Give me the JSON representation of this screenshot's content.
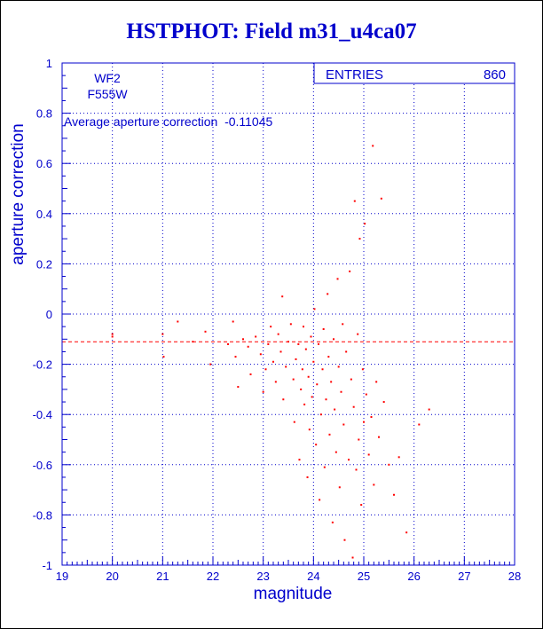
{
  "page_title": "HSTPHOT: Field m31_u4ca07",
  "chart_data": {
    "type": "scatter",
    "title": "HSTPHOT: Field m31_u4ca07",
    "xlabel": "magnitude",
    "ylabel": "aperture correction",
    "xlim": [
      19,
      28
    ],
    "ylim": [
      -1,
      1
    ],
    "x_ticks": [
      19,
      20,
      21,
      22,
      23,
      24,
      25,
      26,
      27,
      28
    ],
    "y_ticks": [
      -1,
      -0.8,
      -0.6,
      -0.4,
      -0.2,
      0,
      0.2,
      0.4,
      0.6,
      0.8,
      1
    ],
    "grid": true,
    "stats_box": {
      "label": "ENTRIES",
      "value": "860"
    },
    "annotations": [
      "WF2",
      "F555W",
      "Average aperture correction  -0.11045"
    ],
    "reference_line": {
      "y": -0.11045,
      "style": "dashed"
    },
    "entries": 860,
    "series": [
      {
        "values_note": "",
        "points": [
          [
            20.0,
            -0.09
          ],
          [
            20.0,
            -0.08
          ],
          [
            21.0,
            -0.08
          ],
          [
            21.02,
            -0.17
          ],
          [
            21.3,
            -0.03
          ],
          [
            21.6,
            -0.11
          ],
          [
            21.85,
            -0.07
          ],
          [
            21.95,
            -0.2
          ],
          [
            22.3,
            -0.12
          ],
          [
            22.4,
            -0.03
          ],
          [
            22.45,
            -0.17
          ],
          [
            22.5,
            -0.29
          ],
          [
            22.6,
            -0.1
          ],
          [
            22.7,
            -0.13
          ],
          [
            22.75,
            -0.24
          ],
          [
            22.85,
            -0.09
          ],
          [
            22.95,
            -0.16
          ],
          [
            23.0,
            -0.31
          ],
          [
            23.05,
            -0.22
          ],
          [
            23.1,
            -0.12
          ],
          [
            23.15,
            -0.05
          ],
          [
            23.2,
            -0.19
          ],
          [
            23.25,
            -0.27
          ],
          [
            23.3,
            -0.08
          ],
          [
            23.35,
            -0.15
          ],
          [
            23.38,
            0.07
          ],
          [
            23.4,
            -0.34
          ],
          [
            23.45,
            -0.21
          ],
          [
            23.5,
            -0.11
          ],
          [
            23.55,
            -0.04
          ],
          [
            23.6,
            -0.26
          ],
          [
            23.62,
            -0.43
          ],
          [
            23.65,
            -0.18
          ],
          [
            23.7,
            -0.12
          ],
          [
            23.72,
            -0.58
          ],
          [
            23.75,
            -0.3
          ],
          [
            23.78,
            -0.22
          ],
          [
            23.8,
            -0.05
          ],
          [
            23.82,
            -0.36
          ],
          [
            23.85,
            -0.14
          ],
          [
            23.88,
            -0.65
          ],
          [
            23.9,
            -0.25
          ],
          [
            23.92,
            -0.46
          ],
          [
            23.95,
            -0.09
          ],
          [
            23.97,
            -0.33
          ],
          [
            24.0,
            -0.19
          ],
          [
            24.02,
            0.02
          ],
          [
            24.05,
            -0.52
          ],
          [
            24.07,
            -0.28
          ],
          [
            24.1,
            -0.12
          ],
          [
            24.12,
            -0.74
          ],
          [
            24.15,
            -0.4
          ],
          [
            24.18,
            -0.22
          ],
          [
            24.2,
            -0.06
          ],
          [
            24.22,
            -0.61
          ],
          [
            24.25,
            -0.34
          ],
          [
            24.28,
            0.08
          ],
          [
            24.3,
            -0.17
          ],
          [
            24.32,
            -0.48
          ],
          [
            24.35,
            -0.27
          ],
          [
            24.38,
            -0.83
          ],
          [
            24.4,
            -0.1
          ],
          [
            24.42,
            -0.38
          ],
          [
            24.45,
            -0.55
          ],
          [
            24.48,
            0.14
          ],
          [
            24.5,
            -0.21
          ],
          [
            24.52,
            -0.69
          ],
          [
            24.55,
            -0.31
          ],
          [
            24.58,
            -0.04
          ],
          [
            24.6,
            -0.44
          ],
          [
            24.62,
            -0.9
          ],
          [
            24.65,
            -0.15
          ],
          [
            24.7,
            -0.58
          ],
          [
            24.72,
            0.17
          ],
          [
            24.75,
            -0.26
          ],
          [
            24.78,
            -0.97
          ],
          [
            24.8,
            -0.37
          ],
          [
            24.82,
            0.45
          ],
          [
            24.85,
            -0.62
          ],
          [
            24.88,
            -0.08
          ],
          [
            24.9,
            -0.5
          ],
          [
            24.92,
            0.3
          ],
          [
            24.95,
            -0.76
          ],
          [
            24.98,
            -0.22
          ],
          [
            25.0,
            -0.43
          ],
          [
            25.02,
            0.36
          ],
          [
            25.05,
            -0.32
          ],
          [
            25.1,
            -0.56
          ],
          [
            25.15,
            -0.41
          ],
          [
            25.18,
            0.67
          ],
          [
            25.2,
            -0.68
          ],
          [
            25.25,
            -0.27
          ],
          [
            25.3,
            -0.49
          ],
          [
            25.35,
            0.46
          ],
          [
            25.4,
            -0.35
          ],
          [
            25.5,
            -0.6
          ],
          [
            25.6,
            -0.72
          ],
          [
            25.7,
            -0.57
          ],
          [
            25.85,
            -0.87
          ],
          [
            26.1,
            -0.44
          ],
          [
            26.3,
            -0.38
          ]
        ]
      }
    ]
  }
}
